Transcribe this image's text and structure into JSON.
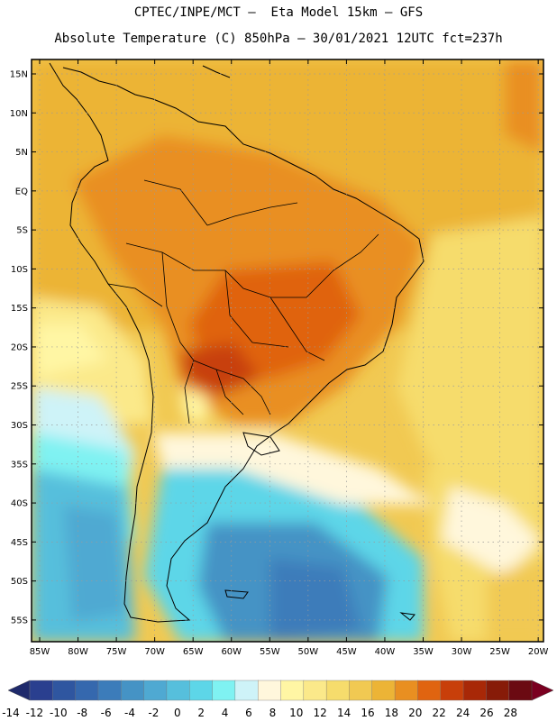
{
  "title_line1": "CPTEC/INPE/MCT –  Eta Model 15km – GFS",
  "title_line2": "Absolute Temperature (C) 850hPa – 30/01/2021 12UTC fct=237h",
  "map": {
    "lat_labels": [
      "15N",
      "10N",
      "5N",
      "EQ",
      "5S",
      "10S",
      "15S",
      "20S",
      "25S",
      "30S",
      "35S",
      "40S",
      "45S",
      "50S",
      "55S"
    ],
    "lon_labels": [
      "85W",
      "80W",
      "75W",
      "70W",
      "65W",
      "60W",
      "55W",
      "50W",
      "45W",
      "40W",
      "35W",
      "30W",
      "25W",
      "20W"
    ]
  },
  "colorbar": {
    "labels": [
      "-14",
      "-12",
      "-10",
      "-8",
      "-6",
      "-4",
      "-2",
      "0",
      "2",
      "4",
      "6",
      "8",
      "10",
      "12",
      "14",
      "16",
      "18",
      "20",
      "22",
      "24",
      "26",
      "28"
    ],
    "colors": [
      "#2a3f8f",
      "#2f56a0",
      "#3568ae",
      "#3c7cba",
      "#4593c5",
      "#4fa9d2",
      "#56bfdc",
      "#5dd6e8",
      "#7ff2f2",
      "#cef3f8",
      "#fff7dc",
      "#fff6a4",
      "#fbe98a",
      "#f6dc6c",
      "#f1c952",
      "#ecb436",
      "#e98f21",
      "#e06410",
      "#c83f0a",
      "#a82807",
      "#871b08",
      "#6b0a12"
    ],
    "under_color": "#1f2a6b",
    "over_color": "#7a0020"
  }
}
